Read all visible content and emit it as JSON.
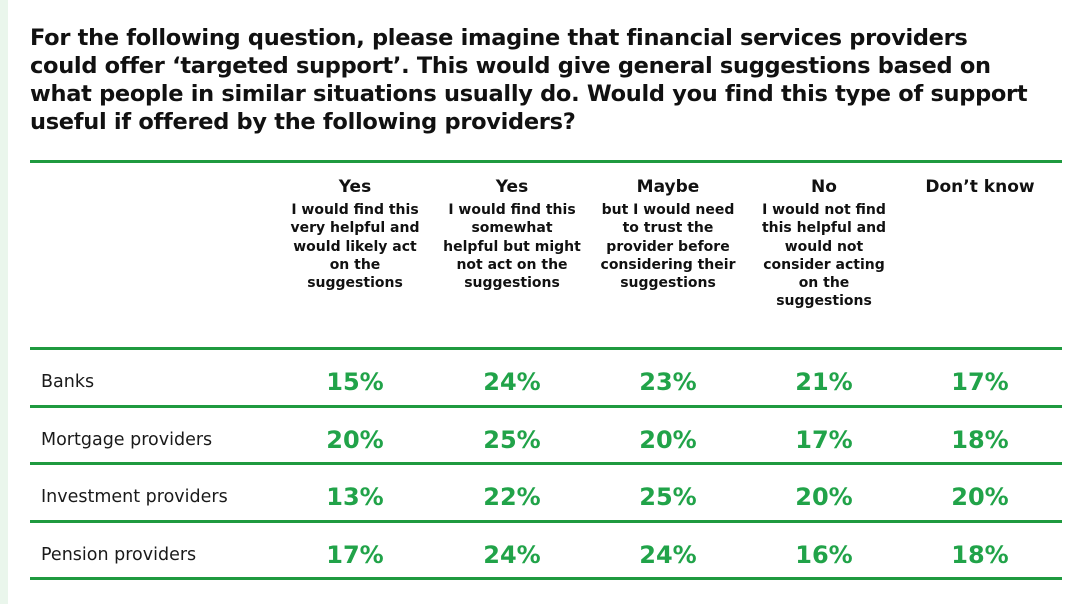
{
  "title": "For the following question, please imagine that financial services providers could offer ‘targeted support’. This would give general suggestions based on what people in similar situations usually do. Would you find this type of support useful if offered by the following providers?",
  "colors": {
    "accent_green": "#1f9a3f",
    "value_green": "#21a349",
    "background_tint": "#eaf6ec"
  },
  "chart_data": {
    "type": "table",
    "columns": [
      {
        "label": "Yes",
        "description": "I would find this very helpful and would likely act on the suggestions"
      },
      {
        "label": "Yes",
        "description": "I would find this somewhat helpful but might not act on the suggestions"
      },
      {
        "label": "Maybe",
        "description": "but I would need to trust the provider before considering their suggestions"
      },
      {
        "label": "No",
        "description": "I would not find this helpful and would not consider acting on the suggestions"
      },
      {
        "label": "Don’t know",
        "description": ""
      }
    ],
    "rows": [
      {
        "label": "Banks",
        "values": [
          "15%",
          "24%",
          "23%",
          "21%",
          "17%"
        ]
      },
      {
        "label": "Mortgage providers",
        "values": [
          "20%",
          "25%",
          "20%",
          "17%",
          "18%"
        ]
      },
      {
        "label": "Investment providers",
        "values": [
          "13%",
          "22%",
          "25%",
          "20%",
          "20%"
        ]
      },
      {
        "label": "Pension providers",
        "values": [
          "17%",
          "24%",
          "24%",
          "16%",
          "18%"
        ]
      }
    ]
  }
}
